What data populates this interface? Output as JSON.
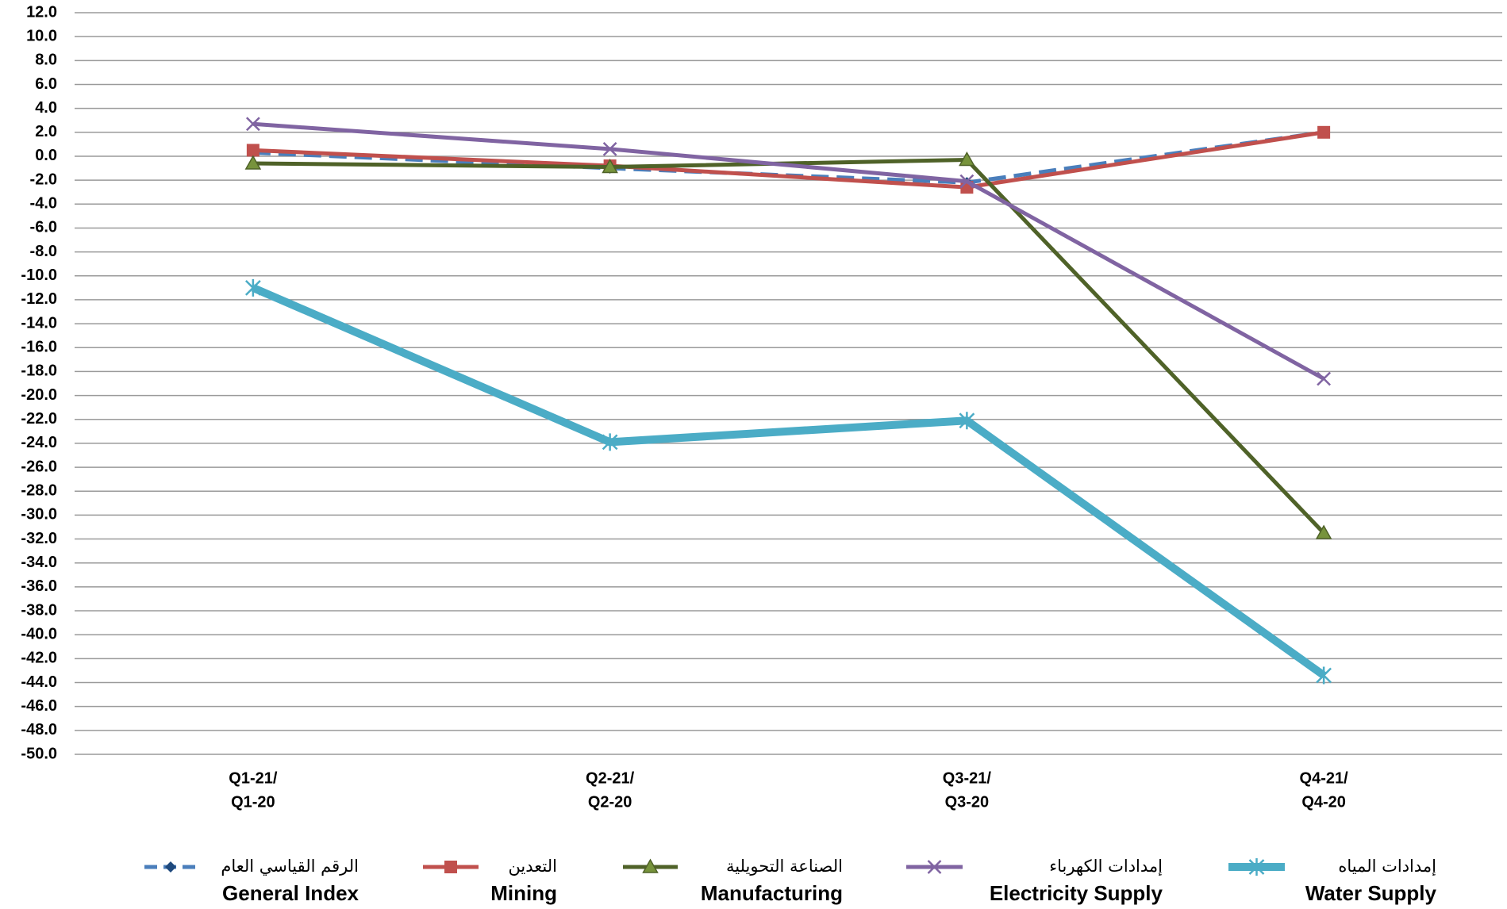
{
  "chart_data": {
    "type": "line",
    "categories": [
      [
        "Q1-21/",
        "Q1-20"
      ],
      [
        "Q2-21/",
        "Q2-20"
      ],
      [
        "Q3-21/",
        "Q3-20"
      ],
      [
        "Q4-21/",
        "Q4-20"
      ]
    ],
    "ylim": [
      -50,
      12
    ],
    "yticks": [
      {
        "value": 12,
        "label": "12.0"
      },
      {
        "value": 10,
        "label": "10.0"
      },
      {
        "value": 8,
        "label": "8.0"
      },
      {
        "value": 6,
        "label": "6.0"
      },
      {
        "value": 4,
        "label": "4.0"
      },
      {
        "value": 2,
        "label": "2.0"
      },
      {
        "value": 0,
        "label": "0.0"
      },
      {
        "value": -2,
        "label": "-2.0"
      },
      {
        "value": -4,
        "label": "-4.0"
      },
      {
        "value": -6,
        "label": "-6.0"
      },
      {
        "value": -8,
        "label": "-8.0"
      },
      {
        "value": -10,
        "label": "-10.0"
      },
      {
        "value": -12,
        "label": "-12.0"
      },
      {
        "value": -14,
        "label": "-14.0"
      },
      {
        "value": -16,
        "label": "-16.0"
      },
      {
        "value": -18,
        "label": "-18.0"
      },
      {
        "value": -20,
        "label": "-20.0"
      },
      {
        "value": -22,
        "label": "-22.0"
      },
      {
        "value": -24,
        "label": "-24.0"
      },
      {
        "value": -26,
        "label": "-26.0"
      },
      {
        "value": -28,
        "label": "-28.0"
      },
      {
        "value": -30,
        "label": "-30.0"
      },
      {
        "value": -32,
        "label": "-32.0"
      },
      {
        "value": -34,
        "label": "-34.0"
      },
      {
        "value": -36,
        "label": "-36.0"
      },
      {
        "value": -38,
        "label": "-38.0"
      },
      {
        "value": -40,
        "label": "-40.0"
      },
      {
        "value": -42,
        "label": "-42.0"
      },
      {
        "value": -44,
        "label": "-44.0"
      },
      {
        "value": -46,
        "label": "-46.0"
      },
      {
        "value": -48,
        "label": "-48.0"
      },
      {
        "value": -50,
        "label": "-50.0"
      }
    ],
    "grid": true,
    "legend": "bottom",
    "series": [
      {
        "name": "General Index",
        "name_ar": "الرقم القياسي العام",
        "color": "#4a7ebb",
        "dash": true,
        "marker": "diamond",
        "values": [
          0.3,
          -1.0,
          -2.2,
          2.0
        ]
      },
      {
        "name": "Mining",
        "name_ar": "التعدين",
        "color": "#c0504d",
        "marker": "square",
        "values": [
          0.5,
          -0.8,
          -2.6,
          2.0
        ]
      },
      {
        "name": "Manufacturing",
        "name_ar": "الصناعة التحويلية",
        "color": "#4f6228",
        "marker": "triangle",
        "values": [
          -0.6,
          -0.9,
          -0.3,
          -31.5
        ]
      },
      {
        "name": "Electricity Supply",
        "name_ar": "إمدادات الكهرباء",
        "color": "#8064a2",
        "marker": "x",
        "values": [
          2.7,
          0.6,
          -2.1,
          -18.6
        ]
      },
      {
        "name": "Water Supply",
        "name_ar": "إمدادات المياه",
        "color": "#4bacc6",
        "marker": "star",
        "width": 10,
        "values": [
          -11.0,
          -23.9,
          -22.1,
          -43.4
        ]
      }
    ]
  }
}
